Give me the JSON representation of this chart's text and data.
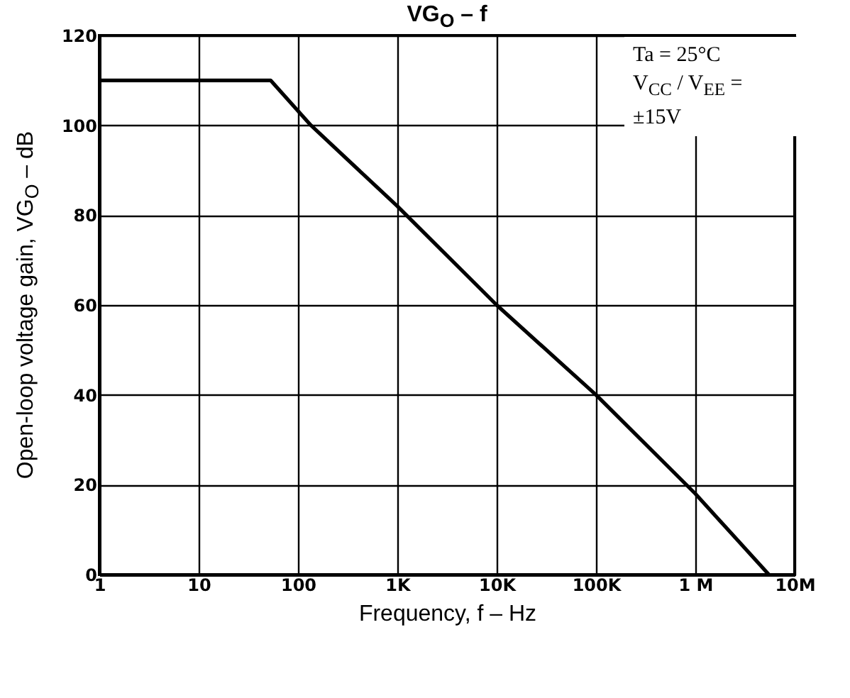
{
  "chart_data": {
    "type": "line",
    "title": "VG$_{O}$ – f",
    "xlabel": "Frequency, f – Hz",
    "ylabel": "Open-loop voltage gain, VG$_{O}$ – dB",
    "annotations": [
      "Ta = 25°C",
      "V$_{CC}$ / V$_{EE}$ = ±15V"
    ],
    "x": [
      1,
      53,
      135,
      1000,
      10000,
      100000,
      1000000,
      5500000
    ],
    "series": [
      {
        "color": "#000000",
        "values": [
          110,
          110,
          100,
          82,
          60,
          40,
          18,
          0
        ]
      }
    ],
    "log": "x",
    "xlim": [
      1,
      10000000
    ],
    "xticks": [
      1,
      10,
      100,
      {
        "value": 1000,
        "label": "1K"
      },
      {
        "value": 10000,
        "label": "10K"
      },
      {
        "value": 100000,
        "label": "100K"
      },
      {
        "value": 1000000,
        "label": "1 M"
      },
      {
        "value": 10000000,
        "label": "10M"
      }
    ],
    "ylim": [
      0,
      120
    ],
    "yticks": [
      0,
      20,
      40,
      60,
      80,
      100,
      120
    ],
    "grid": true,
    "line_style": "solid",
    "marker": "none"
  }
}
